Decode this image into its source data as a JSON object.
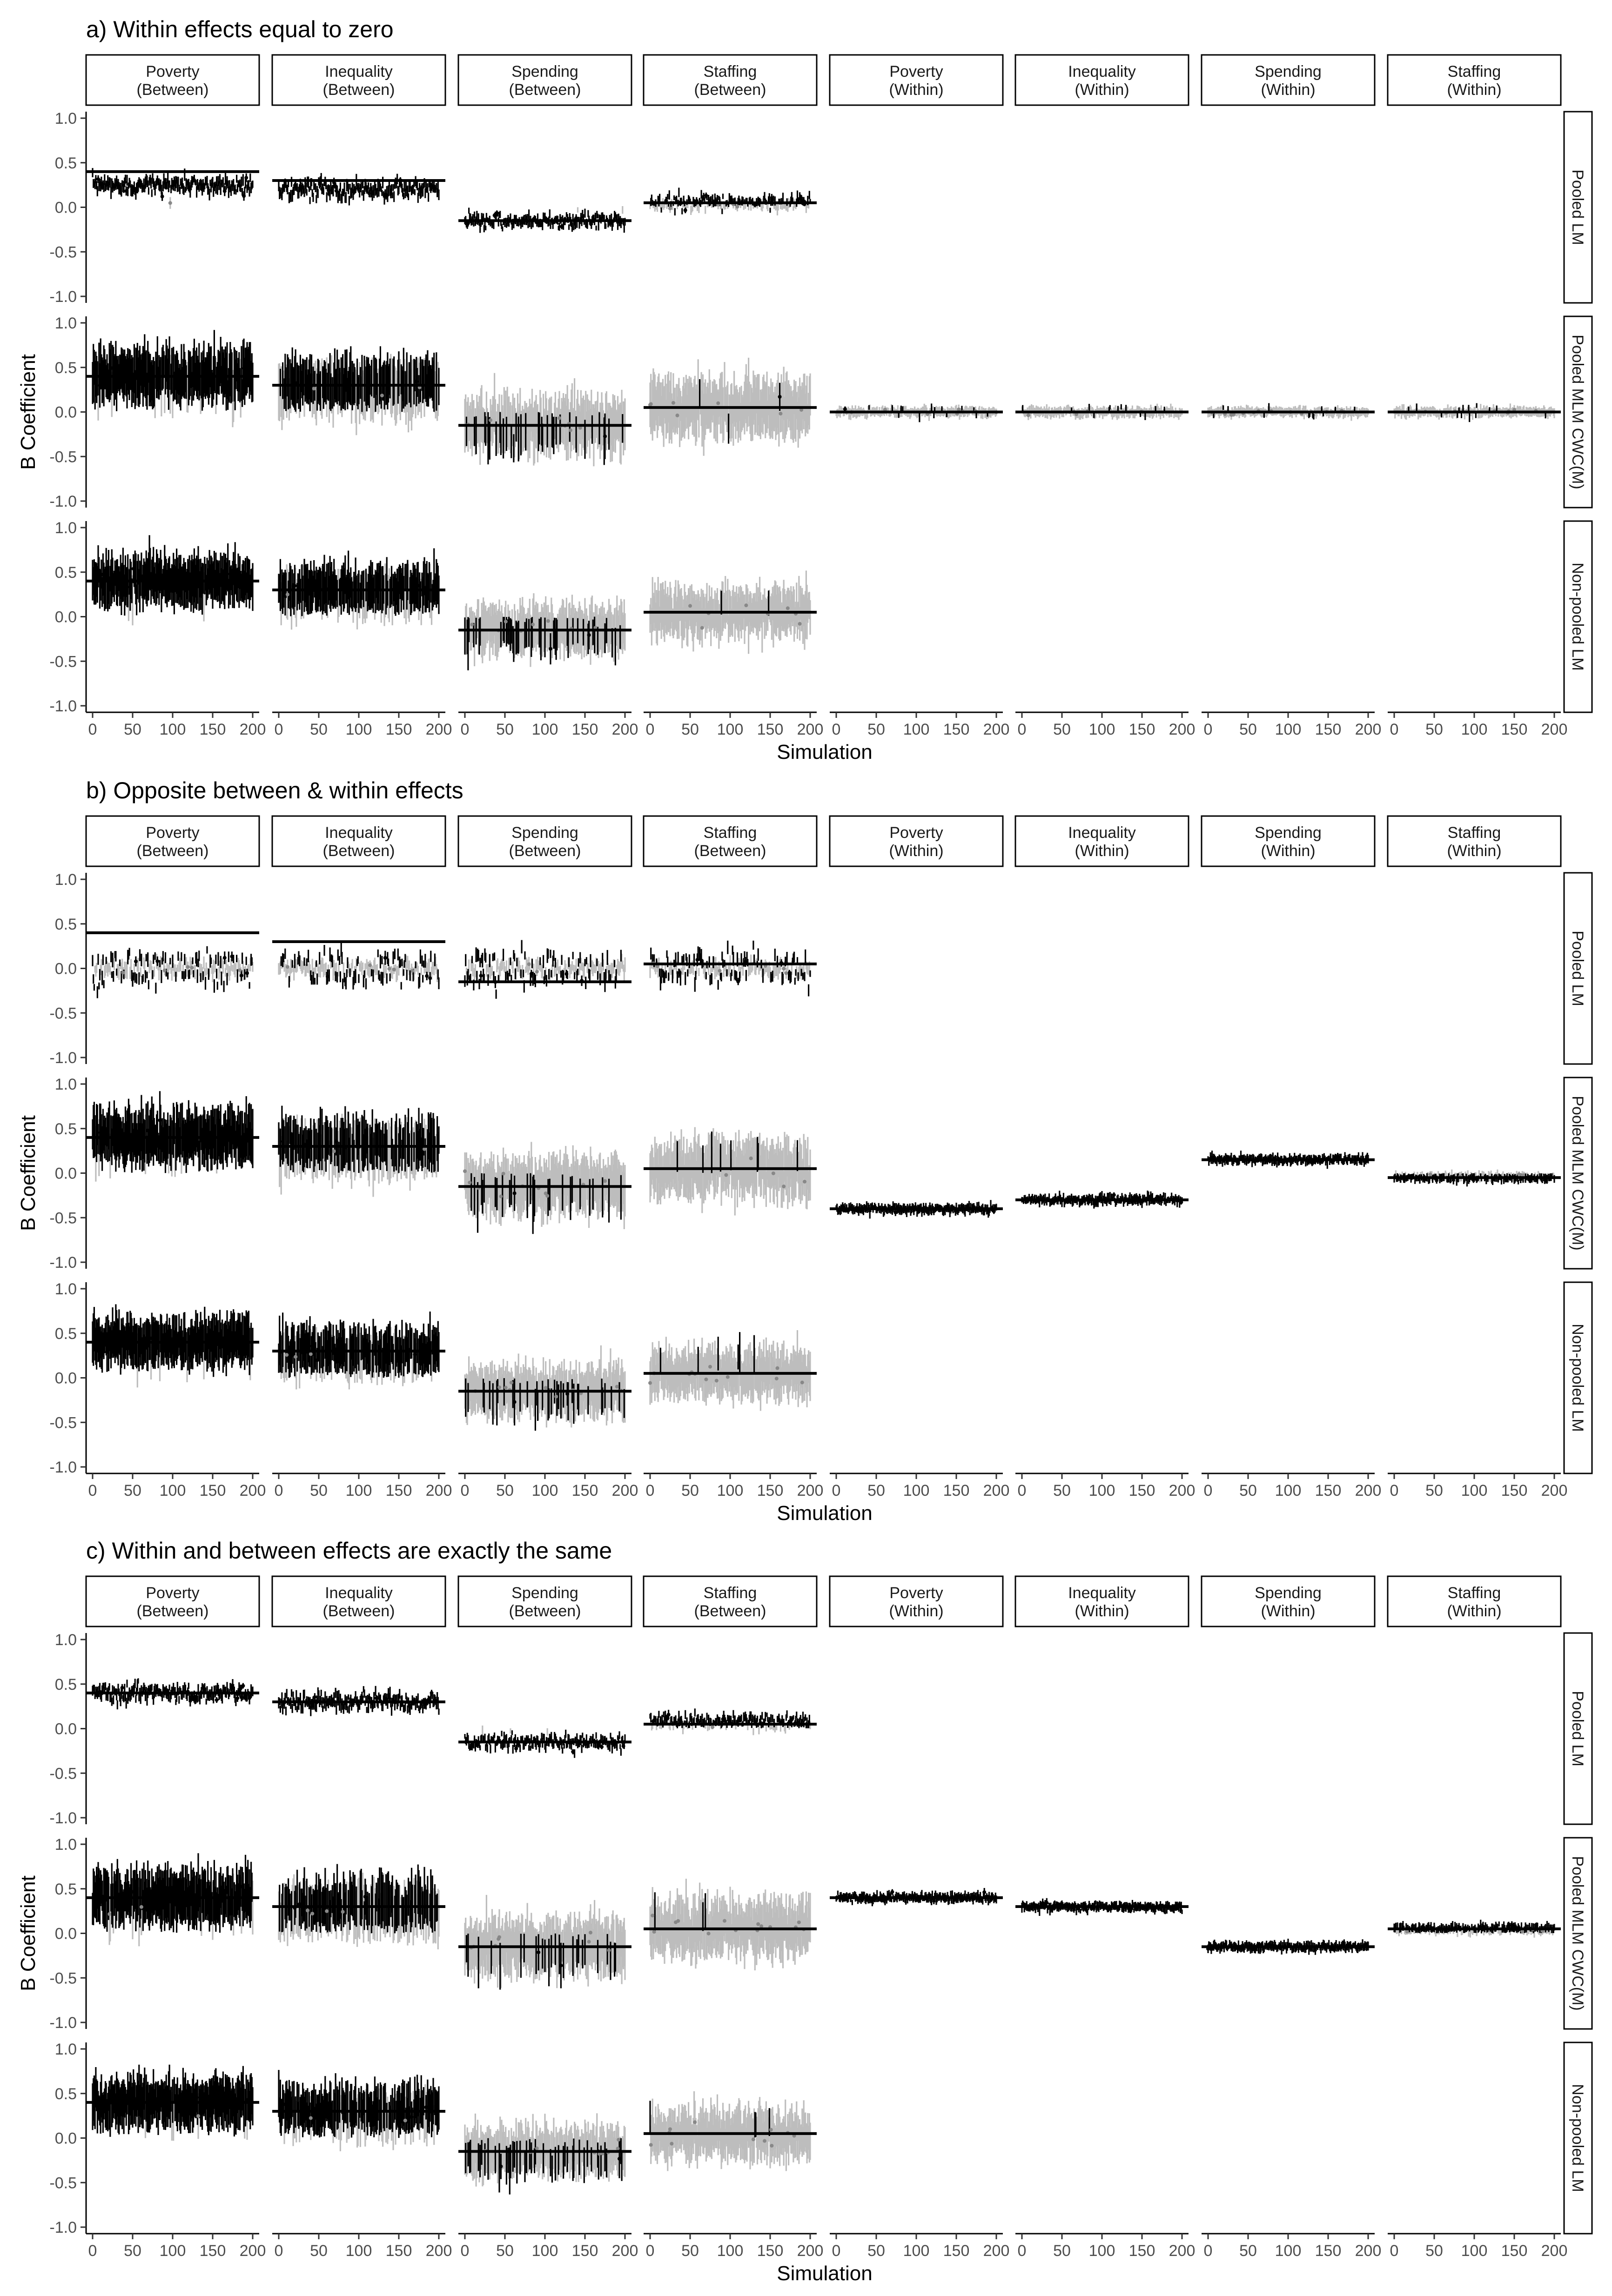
{
  "figure": {
    "ylabel": "B Coefficient",
    "xlabel": "Simulation",
    "x_ticks": [
      "0",
      "50",
      "100",
      "150",
      "200"
    ],
    "y_ticks": [
      "1.0",
      "0.5",
      "0.0",
      "-0.5",
      "-1.0"
    ],
    "column_headers": [
      [
        "Poverty",
        "(Between)"
      ],
      [
        "Inequality",
        "(Between)"
      ],
      [
        "Spending",
        "(Between)"
      ],
      [
        "Staffing",
        "(Between)"
      ],
      [
        "Poverty",
        "(Within)"
      ],
      [
        "Inequality",
        "(Within)"
      ],
      [
        "Spending",
        "(Within)"
      ],
      [
        "Staffing",
        "(Within)"
      ]
    ],
    "row_labels": [
      "Pooled LM",
      "Pooled MLM CWC(M)",
      "Non-pooled LM"
    ],
    "colors": {
      "significant": "#000000",
      "nonsignificant": "#bdbdbd",
      "reference_line": "#000000"
    }
  },
  "chart_data": [
    {
      "type": "scatter",
      "title": "a) Within effects equal to zero",
      "xlabel": "Simulation",
      "ylabel": "B Coefficient",
      "xlim": [
        0,
        200
      ],
      "ylim": [
        -1.0,
        1.0
      ],
      "n_simulations": 200,
      "grid": false,
      "facets": {
        "columns": [
          "Poverty (Between)",
          "Inequality (Between)",
          "Spending (Between)",
          "Staffing (Between)",
          "Poverty (Within)",
          "Inequality (Within)",
          "Spending (Within)",
          "Staffing (Within)"
        ],
        "rows": [
          "Pooled LM",
          "Pooled MLM CWC(M)",
          "Non-pooled LM"
        ]
      },
      "true_values": [
        0.4,
        0.3,
        -0.15,
        0.05,
        0.0,
        0.0,
        0.0,
        0.0
      ],
      "estimates": [
        [
          {
            "mean": 0.25,
            "ci_half": 0.05,
            "sd": 0.05
          },
          {
            "mean": 0.2,
            "ci_half": 0.05,
            "sd": 0.05
          },
          {
            "mean": -0.15,
            "ci_half": 0.04,
            "sd": 0.04
          },
          {
            "mean": 0.05,
            "ci_half": 0.04,
            "sd": 0.04
          },
          null,
          null,
          null,
          null
        ],
        [
          {
            "mean": 0.4,
            "ci_half": 0.25,
            "sd": 0.08
          },
          {
            "mean": 0.3,
            "ci_half": 0.25,
            "sd": 0.08
          },
          {
            "mean": -0.15,
            "ci_half": 0.25,
            "sd": 0.08
          },
          {
            "mean": 0.05,
            "ci_half": 0.25,
            "sd": 0.08
          },
          {
            "mean": 0.0,
            "ci_half": 0.04,
            "sd": 0.02
          },
          {
            "mean": 0.0,
            "ci_half": 0.04,
            "sd": 0.02
          },
          {
            "mean": 0.0,
            "ci_half": 0.04,
            "sd": 0.02
          },
          {
            "mean": 0.0,
            "ci_half": 0.04,
            "sd": 0.02
          }
        ],
        [
          {
            "mean": 0.4,
            "ci_half": 0.22,
            "sd": 0.07
          },
          {
            "mean": 0.3,
            "ci_half": 0.22,
            "sd": 0.07
          },
          {
            "mean": -0.15,
            "ci_half": 0.22,
            "sd": 0.07
          },
          {
            "mean": 0.05,
            "ci_half": 0.22,
            "sd": 0.07
          },
          null,
          null,
          null,
          null
        ]
      ]
    },
    {
      "type": "scatter",
      "title": "b) Opposite between & within effects",
      "xlabel": "Simulation",
      "ylabel": "B Coefficient",
      "xlim": [
        0,
        200
      ],
      "ylim": [
        -1.0,
        1.0
      ],
      "n_simulations": 200,
      "grid": false,
      "facets": {
        "columns": [
          "Poverty (Between)",
          "Inequality (Between)",
          "Spending (Between)",
          "Staffing (Between)",
          "Poverty (Within)",
          "Inequality (Within)",
          "Spending (Within)",
          "Staffing (Within)"
        ],
        "rows": [
          "Pooled LM",
          "Pooled MLM CWC(M)",
          "Non-pooled LM"
        ]
      },
      "true_values": [
        0.4,
        0.3,
        -0.15,
        0.05,
        -0.4,
        -0.3,
        0.15,
        -0.05
      ],
      "estimates": [
        [
          {
            "mean": 0.0,
            "ci_half": 0.06,
            "sd": 0.08
          },
          {
            "mean": 0.0,
            "ci_half": 0.06,
            "sd": 0.08
          },
          {
            "mean": 0.0,
            "ci_half": 0.06,
            "sd": 0.08
          },
          {
            "mean": 0.0,
            "ci_half": 0.06,
            "sd": 0.08
          },
          null,
          null,
          null,
          null
        ],
        [
          {
            "mean": 0.4,
            "ci_half": 0.25,
            "sd": 0.08
          },
          {
            "mean": 0.3,
            "ci_half": 0.25,
            "sd": 0.08
          },
          {
            "mean": -0.15,
            "ci_half": 0.25,
            "sd": 0.08
          },
          {
            "mean": 0.05,
            "ci_half": 0.25,
            "sd": 0.08
          },
          {
            "mean": -0.4,
            "ci_half": 0.04,
            "sd": 0.02
          },
          {
            "mean": -0.3,
            "ci_half": 0.04,
            "sd": 0.02
          },
          {
            "mean": 0.15,
            "ci_half": 0.04,
            "sd": 0.02
          },
          {
            "mean": -0.05,
            "ci_half": 0.04,
            "sd": 0.02
          }
        ],
        [
          {
            "mean": 0.4,
            "ci_half": 0.22,
            "sd": 0.07
          },
          {
            "mean": 0.3,
            "ci_half": 0.22,
            "sd": 0.07
          },
          {
            "mean": -0.15,
            "ci_half": 0.22,
            "sd": 0.07
          },
          {
            "mean": 0.05,
            "ci_half": 0.22,
            "sd": 0.07
          },
          null,
          null,
          null,
          null
        ]
      ]
    },
    {
      "type": "scatter",
      "title": "c) Within and between effects are exactly the same",
      "xlabel": "Simulation",
      "ylabel": "B Coefficient",
      "xlim": [
        0,
        200
      ],
      "ylim": [
        -1.0,
        1.0
      ],
      "n_simulations": 200,
      "grid": false,
      "facets": {
        "columns": [
          "Poverty (Between)",
          "Inequality (Between)",
          "Spending (Between)",
          "Staffing (Between)",
          "Poverty (Within)",
          "Inequality (Within)",
          "Spending (Within)",
          "Staffing (Within)"
        ],
        "rows": [
          "Pooled LM",
          "Pooled MLM CWC(M)",
          "Non-pooled LM"
        ]
      },
      "true_values": [
        0.4,
        0.3,
        -0.15,
        0.05,
        0.4,
        0.3,
        -0.15,
        0.05
      ],
      "estimates": [
        [
          {
            "mean": 0.4,
            "ci_half": 0.05,
            "sd": 0.05
          },
          {
            "mean": 0.3,
            "ci_half": 0.05,
            "sd": 0.05
          },
          {
            "mean": -0.15,
            "ci_half": 0.04,
            "sd": 0.04
          },
          {
            "mean": 0.08,
            "ci_half": 0.04,
            "sd": 0.04
          },
          null,
          null,
          null,
          null
        ],
        [
          {
            "mean": 0.4,
            "ci_half": 0.25,
            "sd": 0.08
          },
          {
            "mean": 0.3,
            "ci_half": 0.25,
            "sd": 0.08
          },
          {
            "mean": -0.15,
            "ci_half": 0.25,
            "sd": 0.08
          },
          {
            "mean": 0.05,
            "ci_half": 0.25,
            "sd": 0.08
          },
          {
            "mean": 0.4,
            "ci_half": 0.04,
            "sd": 0.02
          },
          {
            "mean": 0.3,
            "ci_half": 0.04,
            "sd": 0.02
          },
          {
            "mean": -0.15,
            "ci_half": 0.04,
            "sd": 0.02
          },
          {
            "mean": 0.05,
            "ci_half": 0.04,
            "sd": 0.02
          }
        ],
        [
          {
            "mean": 0.4,
            "ci_half": 0.22,
            "sd": 0.07
          },
          {
            "mean": 0.3,
            "ci_half": 0.22,
            "sd": 0.07
          },
          {
            "mean": -0.15,
            "ci_half": 0.22,
            "sd": 0.07
          },
          {
            "mean": 0.05,
            "ci_half": 0.22,
            "sd": 0.07
          },
          null,
          null,
          null,
          null
        ]
      ]
    }
  ]
}
